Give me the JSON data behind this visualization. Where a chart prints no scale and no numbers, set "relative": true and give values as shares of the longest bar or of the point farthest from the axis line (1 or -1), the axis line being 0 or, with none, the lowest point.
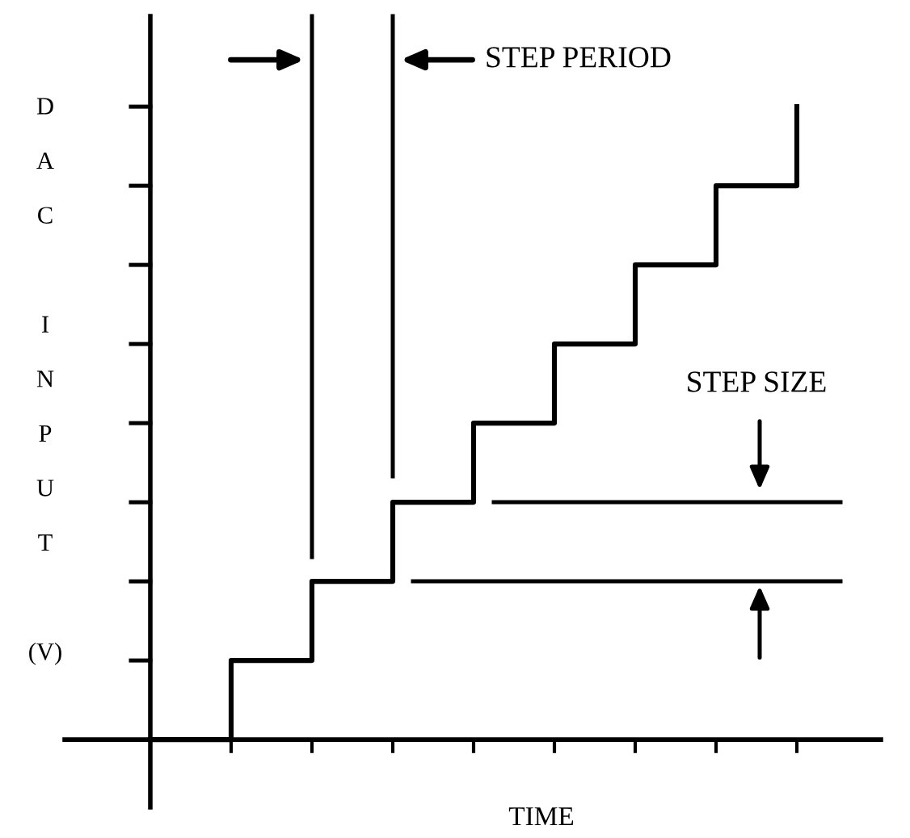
{
  "chart_data": {
    "type": "step",
    "relative": true,
    "xlabel": "TIME",
    "ylabel": "DAC INPUT (V)",
    "categories": [
      null,
      null,
      null,
      null,
      null,
      null,
      null,
      null,
      null
    ],
    "series": [
      {
        "color": "#000000",
        "values": [
          0,
          0.125,
          0.25,
          0.375,
          0.5,
          0.625,
          0.75,
          0.875,
          1
        ]
      }
    ],
    "annotations": [
      "STEP PERIOD",
      "STEP SIZE"
    ],
    "ref_lines": [
      {
        "axis": "y",
        "value": 0.375,
        "color": "#000000"
      },
      {
        "axis": "y",
        "value": 0.25,
        "color": "#000000"
      }
    ],
    "grid": false,
    "legend": false,
    "marker": "none",
    "line_style": "solid"
  }
}
